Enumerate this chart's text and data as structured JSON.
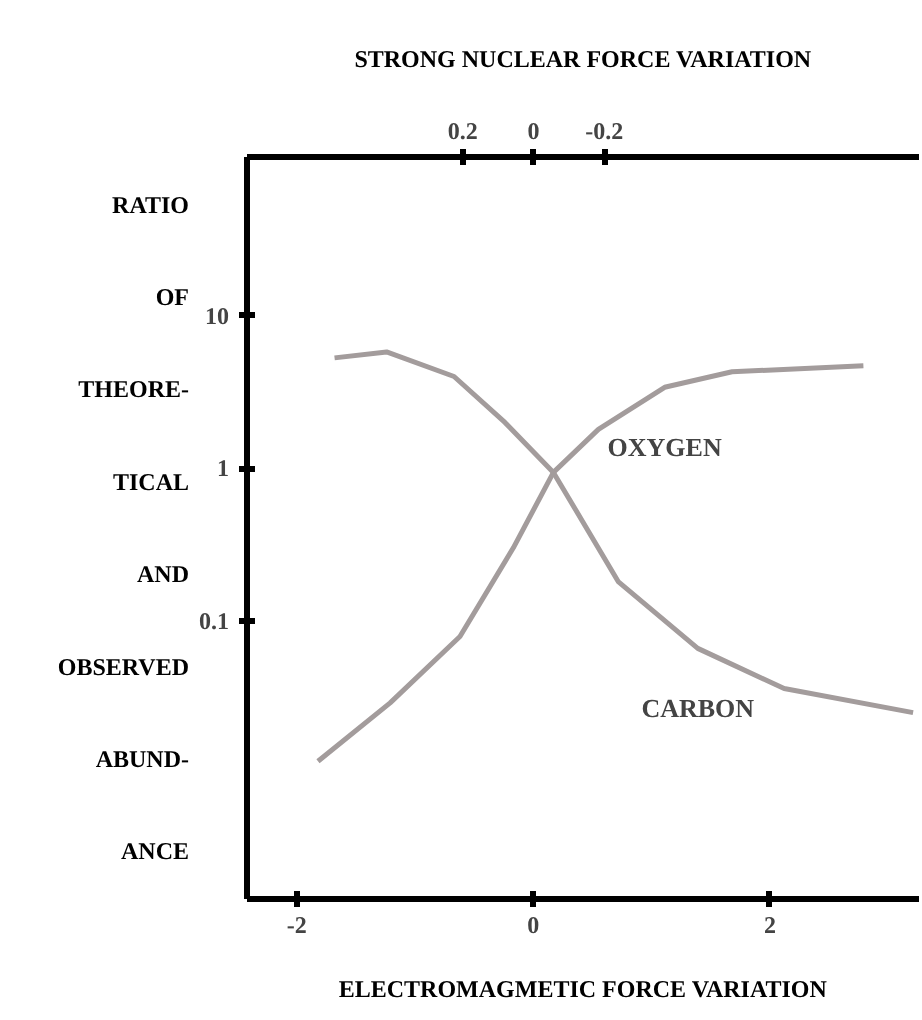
{
  "chart_data": {
    "type": "line",
    "xlabel": "ELECTROMAGMETIC FORCE VARIATION",
    "x2label": "STRONG NUCLEAR FORCE VARIATION",
    "ylabel": "RATIO\nOF\nTHEORE-\nTICAL\nAND\nOBSERVED\nABUND-\nANCE",
    "xlim": [
      -2.42,
      3.26
    ],
    "xticks": [
      -2,
      0,
      2
    ],
    "x2lim": [
      0.81,
      -1.09
    ],
    "x2ticks": [
      0.2,
      0,
      -0.2
    ],
    "ylim": [
      0.0015,
      110
    ],
    "yticks": [
      0.1,
      1,
      10
    ],
    "log": "y",
    "tick_labels": "xy",
    "grid": false,
    "series": [
      {
        "name": "OXYGEN",
        "color": "#a39c9c",
        "x": [
          -1.82,
          -1.21,
          -0.62,
          -0.17,
          0.17,
          0.55,
          1.11,
          1.68,
          2.79
        ],
        "values": [
          0.012,
          0.029,
          0.079,
          0.3,
          0.94,
          1.8,
          3.4,
          4.3,
          4.7
        ]
      },
      {
        "name": "CARBON",
        "color": "#a39c9c",
        "x": [
          -1.68,
          -1.24,
          -0.67,
          -0.24,
          0.17,
          0.72,
          1.39,
          2.12,
          3.21
        ],
        "values": [
          5.3,
          5.8,
          4.0,
          2.0,
          0.94,
          0.18,
          0.066,
          0.036,
          0.025
        ]
      }
    ]
  }
}
